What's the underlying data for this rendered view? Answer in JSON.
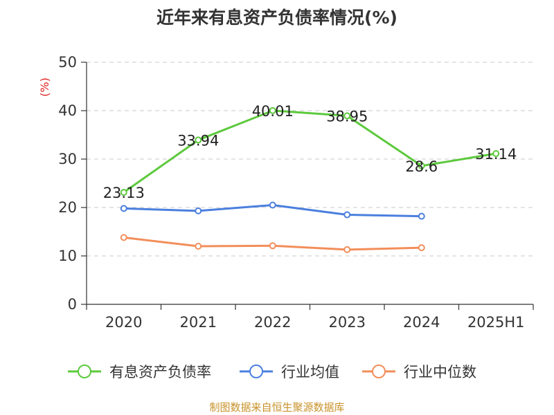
{
  "chart_data": {
    "type": "line",
    "title": "近年来有息资产负债率情况(%)",
    "ylabel": "(%)",
    "xlabel": "",
    "categories": [
      "2020",
      "2021",
      "2022",
      "2023",
      "2024",
      "2025H1"
    ],
    "ylim": [
      0,
      50
    ],
    "yticks": [
      0,
      10,
      20,
      30,
      40,
      50
    ],
    "grid": true,
    "legend_position": "bottom",
    "series": [
      {
        "name": "有息资产负债率",
        "color": "#5cc93c",
        "values": [
          23.13,
          33.94,
          40.01,
          38.95,
          28.6,
          31.14
        ],
        "labels": [
          "23.13",
          "33.94",
          "40.01",
          "38.95",
          "28.6",
          "31.14"
        ]
      },
      {
        "name": "行业均值",
        "color": "#4a7fde",
        "values": [
          19.8,
          19.3,
          20.5,
          18.5,
          18.2,
          null
        ]
      },
      {
        "name": "行业中位数",
        "color": "#f28e5a",
        "values": [
          13.8,
          12.0,
          12.1,
          11.3,
          11.7,
          null
        ]
      }
    ]
  },
  "source": "制图数据来自恒生聚源数据库"
}
